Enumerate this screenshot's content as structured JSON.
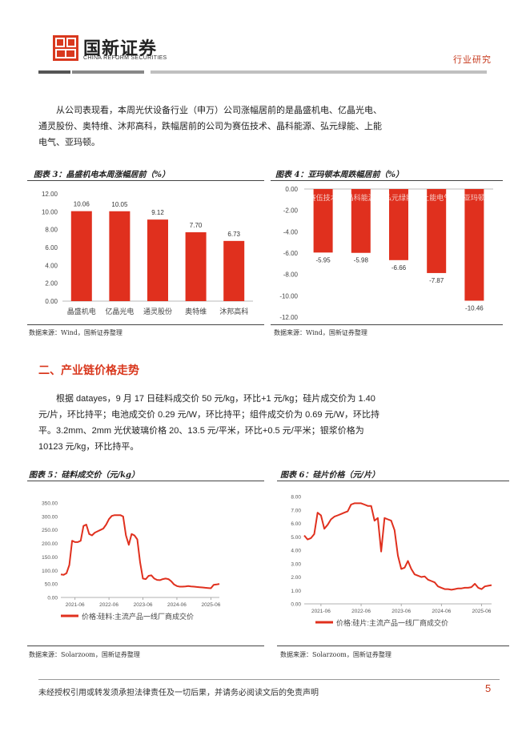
{
  "header": {
    "logo_cn": "国新证券",
    "logo_en": "CHINA REFORM SECURITIES",
    "category": "行业研究"
  },
  "paragraph1": "从公司表现看，本周光伏设备行业（申万）公司涨幅居前的是晶盛机电、亿晶光电、通灵股份、奥特维、沐邦高科，跌幅居前的公司为赛伍技术、晶科能源、弘元绿能、上能电气、亚玛顿。",
  "figure3": {
    "title": "图表 3：晶盛机电本周涨幅居前（%）",
    "source": "数据来源：Wind，国新证券整理"
  },
  "figure4": {
    "title": "图表 4：亚玛顿本周跌幅居前（%）",
    "source": "数据来源：Wind，国新证券整理"
  },
  "section2_title": "二、产业链价格走势",
  "paragraph2": "根据 datayes，9 月 17 日硅料成交价 50 元/kg，环比+1 元/kg；硅片成交价为 1.40 元/片，环比持平；电池成交价 0.29 元/W，环比持平；组件成交价为 0.69 元/W，环比持平。3.2mm、2mm 光伏玻璃价格 20、13.5 元/平米，环比+0.5 元/平米；银浆价格为 10123 元/kg，环比持平。",
  "figure5": {
    "title": "图表 5：硅料成交价（元/kg）",
    "source": "数据来源：Solarzoom，国新证券整理"
  },
  "figure6": {
    "title": "图表 6：硅片价格（元/片）",
    "source": "数据来源：Solarzoom，国新证券整理"
  },
  "footer": {
    "disclaimer": "未经授权引用或转发须承担法律责任及一切后果，并请务必阅读文后的免责声明",
    "page": "5"
  },
  "colors": {
    "accent": "#d9381e",
    "bar": "#e0301e"
  },
  "chart_data": [
    {
      "type": "bar",
      "categories": [
        "晶盛机电",
        "亿晶光电",
        "通灵股份",
        "奥特维",
        "沐邦高科"
      ],
      "values": [
        10.06,
        10.05,
        9.12,
        7.7,
        6.73
      ],
      "value_labels": [
        "10.06",
        "10.05",
        "9.12",
        "7.70",
        "6.73"
      ],
      "ylim": [
        0,
        12
      ],
      "yticks": [
        "0.00",
        "2.00",
        "4.00",
        "6.00",
        "8.00",
        "10.00",
        "12.00"
      ]
    },
    {
      "type": "bar",
      "categories": [
        "赛伍技术",
        "晶科能源",
        "弘元绿能",
        "上能电气",
        "亚玛顿"
      ],
      "values": [
        -5.95,
        -5.98,
        -6.66,
        -7.87,
        -10.46
      ],
      "value_labels": [
        "-5.95",
        "-5.98",
        "-6.66",
        "-7.87",
        "-10.46"
      ],
      "ylim": [
        -12,
        0
      ],
      "yticks": [
        "0.00",
        "-2.00",
        "-4.00",
        "-6.00",
        "-8.00",
        "-10.00",
        "-12.00"
      ]
    },
    {
      "type": "line",
      "series_name": "价格:硅料:主流产品一线厂商成交价",
      "ylim": [
        0,
        350
      ],
      "yticks": [
        "0.00",
        "50.00",
        "100.00",
        "150.00",
        "200.00",
        "250.00",
        "300.00",
        "350.00"
      ],
      "xticks": [
        "2021-06",
        "2022-06",
        "2023-06",
        "2024-06",
        "2025-06"
      ],
      "x": [
        "2021-01",
        "2021-02",
        "2021-03",
        "2021-04",
        "2021-05",
        "2021-06",
        "2021-07",
        "2021-08",
        "2021-09",
        "2021-10",
        "2021-11",
        "2021-12",
        "2022-01",
        "2022-02",
        "2022-03",
        "2022-04",
        "2022-05",
        "2022-06",
        "2022-07",
        "2022-08",
        "2022-09",
        "2022-10",
        "2022-11",
        "2022-12",
        "2023-01",
        "2023-02",
        "2023-03",
        "2023-04",
        "2023-05",
        "2023-06",
        "2023-07",
        "2023-08",
        "2023-09",
        "2023-10",
        "2023-11",
        "2023-12",
        "2024-01",
        "2024-02",
        "2024-03",
        "2024-04",
        "2024-05",
        "2024-06",
        "2024-07",
        "2024-08",
        "2024-09",
        "2024-10",
        "2024-11",
        "2024-12",
        "2025-01",
        "2025-02",
        "2025-03",
        "2025-04",
        "2025-05",
        "2025-06",
        "2025-07",
        "2025-08",
        "2025-09"
      ],
      "values": [
        85,
        84,
        90,
        120,
        210,
        205,
        205,
        210,
        265,
        270,
        235,
        230,
        240,
        245,
        250,
        255,
        270,
        290,
        302,
        305,
        305,
        305,
        300,
        230,
        195,
        235,
        230,
        215,
        130,
        70,
        68,
        80,
        82,
        70,
        65,
        64,
        68,
        70,
        68,
        60,
        48,
        42,
        40,
        40,
        41,
        42,
        41,
        40,
        39,
        38,
        37,
        36,
        35,
        34,
        47,
        48,
        50
      ]
    },
    {
      "type": "line",
      "series_name": "价格:硅片:主流产品一线厂商成交价",
      "ylim": [
        0,
        8
      ],
      "yticks": [
        "0.00",
        "1.00",
        "2.00",
        "3.00",
        "4.00",
        "5.00",
        "6.00",
        "7.00",
        "8.00"
      ],
      "xticks": [
        "2021-06",
        "2022-06",
        "2023-06",
        "2024-06",
        "2025-06"
      ],
      "x": [
        "2021-01",
        "2021-02",
        "2021-03",
        "2021-04",
        "2021-05",
        "2021-06",
        "2021-07",
        "2021-08",
        "2021-09",
        "2021-10",
        "2021-11",
        "2021-12",
        "2022-01",
        "2022-02",
        "2022-03",
        "2022-04",
        "2022-05",
        "2022-06",
        "2022-07",
        "2022-08",
        "2022-09",
        "2022-10",
        "2022-11",
        "2022-12",
        "2023-01",
        "2023-02",
        "2023-03",
        "2023-04",
        "2023-05",
        "2023-06",
        "2023-07",
        "2023-08",
        "2023-09",
        "2023-10",
        "2023-11",
        "2023-12",
        "2024-01",
        "2024-02",
        "2024-03",
        "2024-04",
        "2024-05",
        "2024-06",
        "2024-07",
        "2024-08",
        "2024-09",
        "2024-10",
        "2024-11",
        "2024-12",
        "2025-01",
        "2025-02",
        "2025-03",
        "2025-04",
        "2025-05",
        "2025-06",
        "2025-07",
        "2025-08",
        "2025-09"
      ],
      "values": [
        5.1,
        4.8,
        4.9,
        5.2,
        6.8,
        6.6,
        5.6,
        5.9,
        6.3,
        6.5,
        6.6,
        6.7,
        6.8,
        6.9,
        7.4,
        7.5,
        7.5,
        7.5,
        7.4,
        7.3,
        7.3,
        6.2,
        6.4,
        3.9,
        6.4,
        6.3,
        6.2,
        5.5,
        3.6,
        2.6,
        2.7,
        3.2,
        2.6,
        2.2,
        2.1,
        2.0,
        2.05,
        1.8,
        1.7,
        1.6,
        1.3,
        1.2,
        1.1,
        1.1,
        1.05,
        1.1,
        1.15,
        1.15,
        1.2,
        1.2,
        1.25,
        1.5,
        1.2,
        1.1,
        1.3,
        1.35,
        1.4
      ]
    }
  ]
}
